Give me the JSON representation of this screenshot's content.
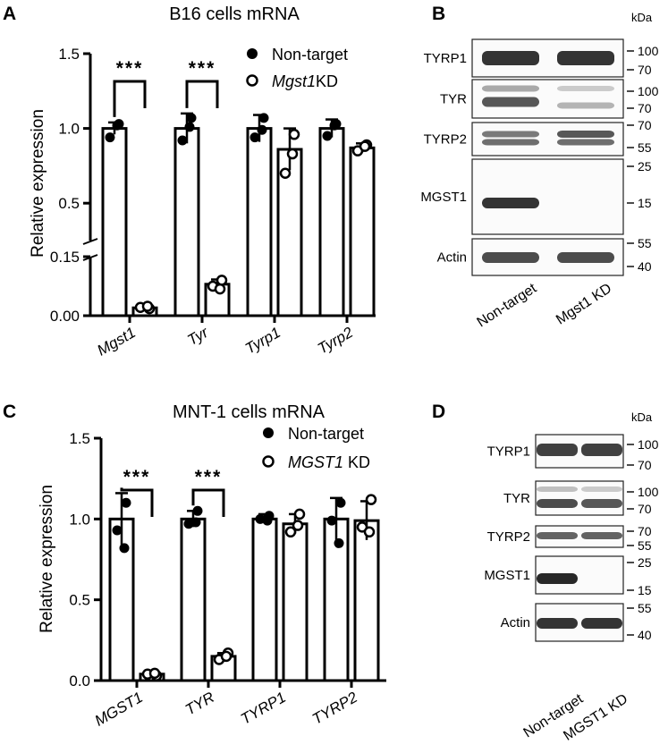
{
  "panels": {
    "A": "A",
    "B": "B",
    "C": "C",
    "D": "D"
  },
  "chart_data": [
    {
      "type": "bar",
      "panel": "A",
      "title": "B16 cells mRNA",
      "ylabel": "Relative expression",
      "categories": [
        "Mgst1",
        "Tyr",
        "Tyrp1",
        "Tyrp2"
      ],
      "axis_break": true,
      "lower_ylim": [
        0,
        0.15
      ],
      "lower_yticks": [
        "0.00",
        "0.15"
      ],
      "upper_ylim": [
        0.25,
        1.5
      ],
      "upper_yticks": [
        "0.5",
        "1.0",
        "1.5"
      ],
      "legend_position": "top-right",
      "series": [
        {
          "name": "Non-target",
          "marker": "filled-circle",
          "values": [
            1.0,
            1.0,
            1.0,
            1.0
          ],
          "errors": [
            0.04,
            0.1,
            0.09,
            0.06
          ],
          "points": [
            [
              1.03,
              0.94,
              1.02
            ],
            [
              1.07,
              0.92,
              1.01
            ],
            [
              1.07,
              0.94,
              0.99
            ],
            [
              1.03,
              0.95,
              1.02
            ]
          ]
        },
        {
          "name_prefix": "Mgst1",
          "name_suffix": "KD",
          "marker": "open-circle",
          "values": [
            0.02,
            0.08,
            0.86,
            0.87
          ],
          "errors": [
            0.004,
            0.012,
            0.14,
            0.03
          ],
          "points": [
            [
              0.018,
              0.021,
              0.024
            ],
            [
              0.09,
              0.075,
              0.068
            ],
            [
              0.96,
              0.7,
              0.83
            ],
            [
              0.89,
              0.85,
              0.88
            ]
          ]
        }
      ],
      "significance": [
        {
          "category": "Mgst1",
          "label": "***"
        },
        {
          "category": "Tyr",
          "label": "***"
        }
      ]
    },
    {
      "type": "bar",
      "panel": "C",
      "title": "MNT-1 cells mRNA",
      "ylabel": "Relative expression",
      "categories": [
        "MGST1",
        "TYR",
        "TYRP1",
        "TYRP2"
      ],
      "ylim": [
        0,
        1.5
      ],
      "yticks": [
        "0.0",
        "0.5",
        "1.0",
        "1.5"
      ],
      "legend_position": "top-right",
      "series": [
        {
          "name": "Non-target",
          "marker": "filled-circle",
          "values": [
            1.0,
            1.0,
            1.0,
            1.0
          ],
          "errors": [
            0.16,
            0.05,
            0.03,
            0.13
          ],
          "points": [
            [
              1.1,
              0.93,
              0.82
            ],
            [
              1.05,
              0.97,
              0.98
            ],
            [
              1.02,
              1.0,
              0.99
            ],
            [
              1.1,
              0.99,
              0.85
            ]
          ]
        },
        {
          "name_prefix": "MGST1",
          "name_suffix": " KD",
          "marker": "open-circle",
          "values": [
            0.04,
            0.15,
            0.97,
            0.99
          ],
          "errors": [
            0.008,
            0.02,
            0.06,
            0.12
          ],
          "points": [
            [
              0.03,
              0.04,
              0.045
            ],
            [
              0.17,
              0.13,
              0.15
            ],
            [
              1.03,
              0.92,
              0.96
            ],
            [
              1.12,
              0.95,
              0.92
            ]
          ]
        }
      ],
      "significance": [
        {
          "category": "MGST1",
          "label": "***"
        },
        {
          "category": "TYR",
          "label": "***"
        }
      ]
    }
  ],
  "blots": [
    {
      "panel": "B",
      "unit": "kDa",
      "lanes": [
        "Non-target",
        "Mgst1 KD"
      ],
      "rows": [
        {
          "label": "TYRP1",
          "markers": [
            "100",
            "70"
          ]
        },
        {
          "label": "TYR",
          "markers": [
            "100",
            "70"
          ]
        },
        {
          "label": "TYRP2",
          "markers": [
            "70",
            "55"
          ]
        },
        {
          "label": "MGST1",
          "markers": [
            "25",
            "15"
          ]
        },
        {
          "label": "Actin",
          "markers": [
            "55",
            "40"
          ]
        }
      ]
    },
    {
      "panel": "D",
      "unit": "kDa",
      "lanes": [
        "Non-target",
        "MGST1 KD"
      ],
      "rows": [
        {
          "label": "TYRP1",
          "markers": [
            "100",
            "70"
          ]
        },
        {
          "label": "TYR",
          "markers": [
            "100",
            "70"
          ]
        },
        {
          "label": "TYRP2",
          "markers": [
            "70",
            "55"
          ]
        },
        {
          "label": "MGST1",
          "markers": [
            "25",
            "15"
          ]
        },
        {
          "label": "Actin",
          "markers": [
            "55",
            "40"
          ]
        }
      ]
    }
  ]
}
